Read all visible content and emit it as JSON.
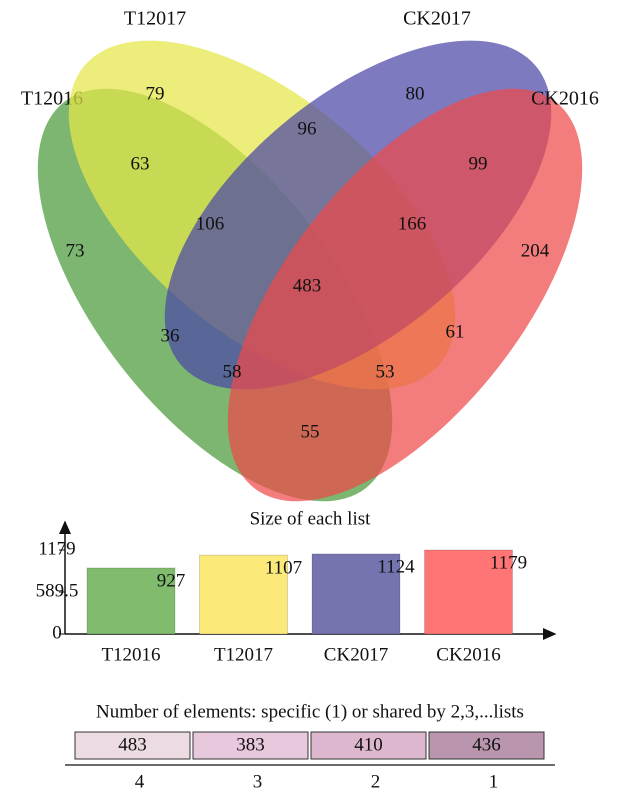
{
  "chart_data": [
    {
      "type": "venn",
      "sets": [
        {
          "name": "T12016",
          "color": "#4a9a3a"
        },
        {
          "name": "T12017",
          "color": "#e6e64a"
        },
        {
          "name": "CK2017",
          "color": "#4b46a8"
        },
        {
          "name": "CK2016",
          "color": "#ee4a4a"
        }
      ],
      "values": [
        79,
        80,
        63,
        96,
        99,
        73,
        106,
        166,
        204,
        483,
        36,
        61,
        58,
        53,
        55
      ]
    },
    {
      "type": "bar",
      "title": "Size of each list",
      "categories": [
        "T12016",
        "T12017",
        "CK2017",
        "CK2016"
      ],
      "values": [
        927,
        1107,
        1124,
        1179
      ],
      "colors": [
        "#80bb6e",
        "#fbe97a",
        "#7574ae",
        "#ff7474"
      ],
      "ylim": [
        0,
        1179
      ],
      "yticks": [
        0,
        589.5,
        1179
      ]
    },
    {
      "type": "strip",
      "title": "Number of elements: specific (1) or shared by 2,3,...lists",
      "categories": [
        "4",
        "3",
        "2",
        "1"
      ],
      "values": [
        483,
        383,
        410,
        436
      ],
      "colors": [
        "#ecdbe2",
        "#e8c8dd",
        "#dcb7cd",
        "#b996ae"
      ]
    }
  ]
}
